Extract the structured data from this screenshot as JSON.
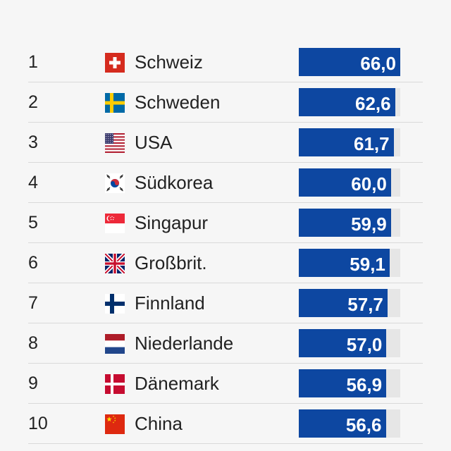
{
  "chart_data": {
    "type": "bar",
    "orientation": "horizontal",
    "categories": [
      "Schweiz",
      "Schweden",
      "USA",
      "Südkorea",
      "Singapur",
      "Großbrit.",
      "Finnland",
      "Niederlande",
      "Dänemark",
      "China"
    ],
    "ranks": [
      "1",
      "2",
      "3",
      "4",
      "5",
      "6",
      "7",
      "8",
      "9",
      "10"
    ],
    "values": [
      66.0,
      62.6,
      61.7,
      60.0,
      59.9,
      59.1,
      57.7,
      57.0,
      56.9,
      56.6
    ],
    "value_labels": [
      "66,0",
      "62,6",
      "61,7",
      "60,0",
      "59,9",
      "59,1",
      "57,7",
      "57,0",
      "56,9",
      "56,6"
    ],
    "flags": [
      "ch-flag-icon",
      "se-flag-icon",
      "us-flag-icon",
      "kr-flag-icon",
      "sg-flag-icon",
      "gb-flag-icon",
      "fi-flag-icon",
      "nl-flag-icon",
      "dk-flag-icon",
      "cn-flag-icon"
    ],
    "xlim": [
      0,
      66.0
    ],
    "colors": {
      "bar": "#0d47a1",
      "track": "#e6e6e6",
      "value_text": "#ffffff"
    }
  }
}
